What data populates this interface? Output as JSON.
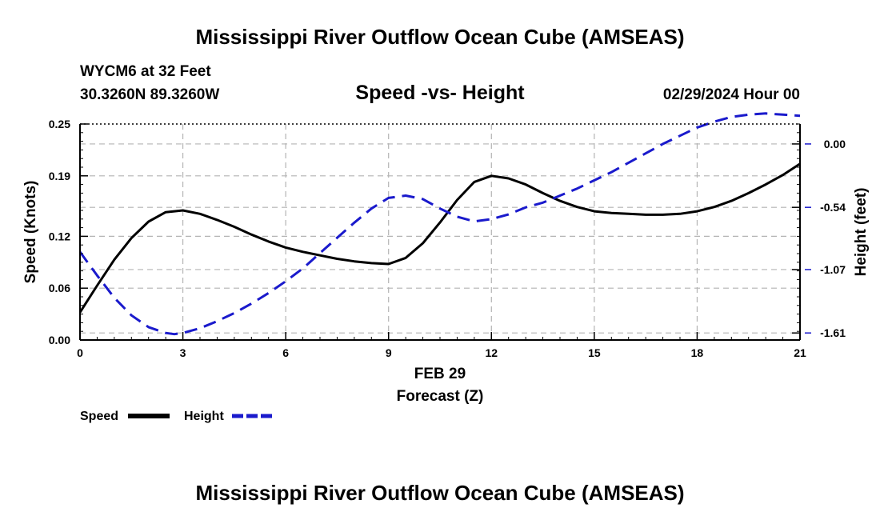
{
  "header": {
    "title": "Mississippi River Outflow Ocean Cube (AMSEAS)",
    "station": "WYCM6 at 32 Feet",
    "coords": "30.3260N  89.3260W",
    "datetime": "02/29/2024 Hour 00"
  },
  "footer": {
    "title": "Mississippi River Outflow Ocean Cube (AMSEAS)"
  },
  "colors": {
    "speed": "#000000",
    "height": "#1a1acc",
    "grid": "#b4b4b4"
  },
  "chart_data": {
    "type": "line",
    "title": "Speed -vs- Height",
    "xlabel": "Forecast (Z)",
    "xdate": "FEB 29",
    "ylabel": "Speed (Knots)",
    "y2label": "Height (feet)",
    "xlim": [
      0,
      21
    ],
    "ylim": [
      0,
      0.25
    ],
    "y2lim": [
      -1.67,
      0.17
    ],
    "xticks": [
      0,
      3,
      6,
      9,
      12,
      15,
      18,
      21
    ],
    "yticks": [
      "0.00",
      "0.06",
      "0.12",
      "0.19",
      "0.25"
    ],
    "y2ticks": [
      "0.00",
      "-0.54",
      "-1.07",
      "-1.61"
    ],
    "legend": [
      {
        "name": "Speed",
        "style": "solid"
      },
      {
        "name": "Height",
        "style": "dashed"
      }
    ],
    "series": [
      {
        "name": "Speed",
        "axis": "left",
        "x": [
          0,
          0.5,
          1,
          1.5,
          2,
          2.5,
          3,
          3.5,
          4,
          4.5,
          5,
          5.5,
          6,
          6.5,
          7,
          7.5,
          8,
          8.5,
          9,
          9.5,
          10,
          10.5,
          11,
          11.5,
          12,
          12.5,
          13,
          13.5,
          14,
          14.5,
          15,
          15.5,
          16,
          16.5,
          17,
          17.5,
          18,
          18.5,
          19,
          19.5,
          20,
          20.5,
          21
        ],
        "values": [
          0.032,
          0.063,
          0.093,
          0.118,
          0.137,
          0.148,
          0.15,
          0.146,
          0.139,
          0.131,
          0.122,
          0.114,
          0.107,
          0.102,
          0.098,
          0.094,
          0.091,
          0.089,
          0.088,
          0.095,
          0.112,
          0.136,
          0.162,
          0.183,
          0.19,
          0.187,
          0.18,
          0.17,
          0.161,
          0.154,
          0.149,
          0.147,
          0.146,
          0.145,
          0.145,
          0.146,
          0.149,
          0.154,
          0.161,
          0.17,
          0.18,
          0.191,
          0.204
        ]
      },
      {
        "name": "Height",
        "axis": "right",
        "x": [
          0,
          0.5,
          1,
          1.5,
          2,
          2.5,
          2.75,
          3,
          3.5,
          4,
          4.5,
          5,
          5.5,
          6,
          6.5,
          7,
          7.5,
          8,
          8.5,
          9,
          9.5,
          10,
          10.5,
          11,
          11.5,
          12,
          12.5,
          13,
          13.5,
          14,
          14.5,
          15,
          15.5,
          16,
          16.5,
          17,
          17.5,
          18,
          18.5,
          19,
          19.5,
          20,
          20.5,
          21
        ],
        "values": [
          -0.92,
          -1.12,
          -1.31,
          -1.46,
          -1.56,
          -1.61,
          -1.62,
          -1.61,
          -1.57,
          -1.51,
          -1.44,
          -1.36,
          -1.27,
          -1.17,
          -1.06,
          -0.93,
          -0.8,
          -0.67,
          -0.55,
          -0.46,
          -0.44,
          -0.47,
          -0.55,
          -0.62,
          -0.66,
          -0.64,
          -0.6,
          -0.54,
          -0.5,
          -0.44,
          -0.38,
          -0.31,
          -0.24,
          -0.16,
          -0.08,
          0.0,
          0.07,
          0.14,
          0.19,
          0.23,
          0.25,
          0.26,
          0.25,
          0.24
        ]
      }
    ]
  }
}
